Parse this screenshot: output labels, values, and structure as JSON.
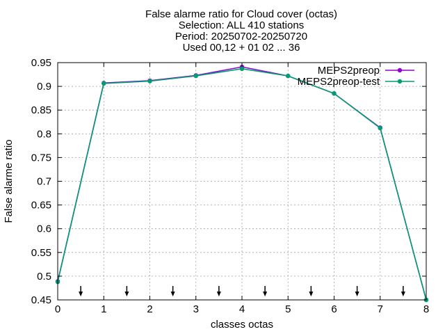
{
  "chart_data": {
    "type": "line",
    "title_lines": [
      "False alarme ratio  for Cloud cover (octas)",
      "Selection: ALL    410 stations",
      "Period: 20250702-20250720",
      "Used 00,12 + 01 02 ... 36"
    ],
    "xlabel": "classes octas",
    "ylabel": "False alarme ratio",
    "xlim": [
      0,
      8
    ],
    "ylim": [
      0.45,
      0.95
    ],
    "x_ticks": [
      "0",
      "1",
      "2",
      "3",
      "4",
      "5",
      "6",
      "7",
      "8"
    ],
    "y_ticks": [
      "0.45",
      "0.5",
      "0.55",
      "0.6",
      "0.65",
      "0.7",
      "0.75",
      "0.8",
      "0.85",
      "0.9",
      "0.95"
    ],
    "grid": true,
    "legend_position": "top-right",
    "x": [
      0,
      1,
      2,
      3,
      4,
      5,
      6,
      7,
      8
    ],
    "series": [
      {
        "name": "MEPS2preop",
        "color": "#9400d3",
        "values": [
          0.489,
          0.907,
          0.912,
          0.923,
          0.941,
          0.922,
          0.885,
          0.813,
          0.45
        ]
      },
      {
        "name": "MEPS2preop-test",
        "color": "#009e73",
        "values": [
          0.488,
          0.906,
          0.911,
          0.922,
          0.937,
          0.922,
          0.885,
          0.812,
          0.45
        ]
      }
    ],
    "arrow_markers_x": [
      0.5,
      1.5,
      2.5,
      3.5,
      4.5,
      5.5,
      6.5,
      7.5
    ]
  }
}
